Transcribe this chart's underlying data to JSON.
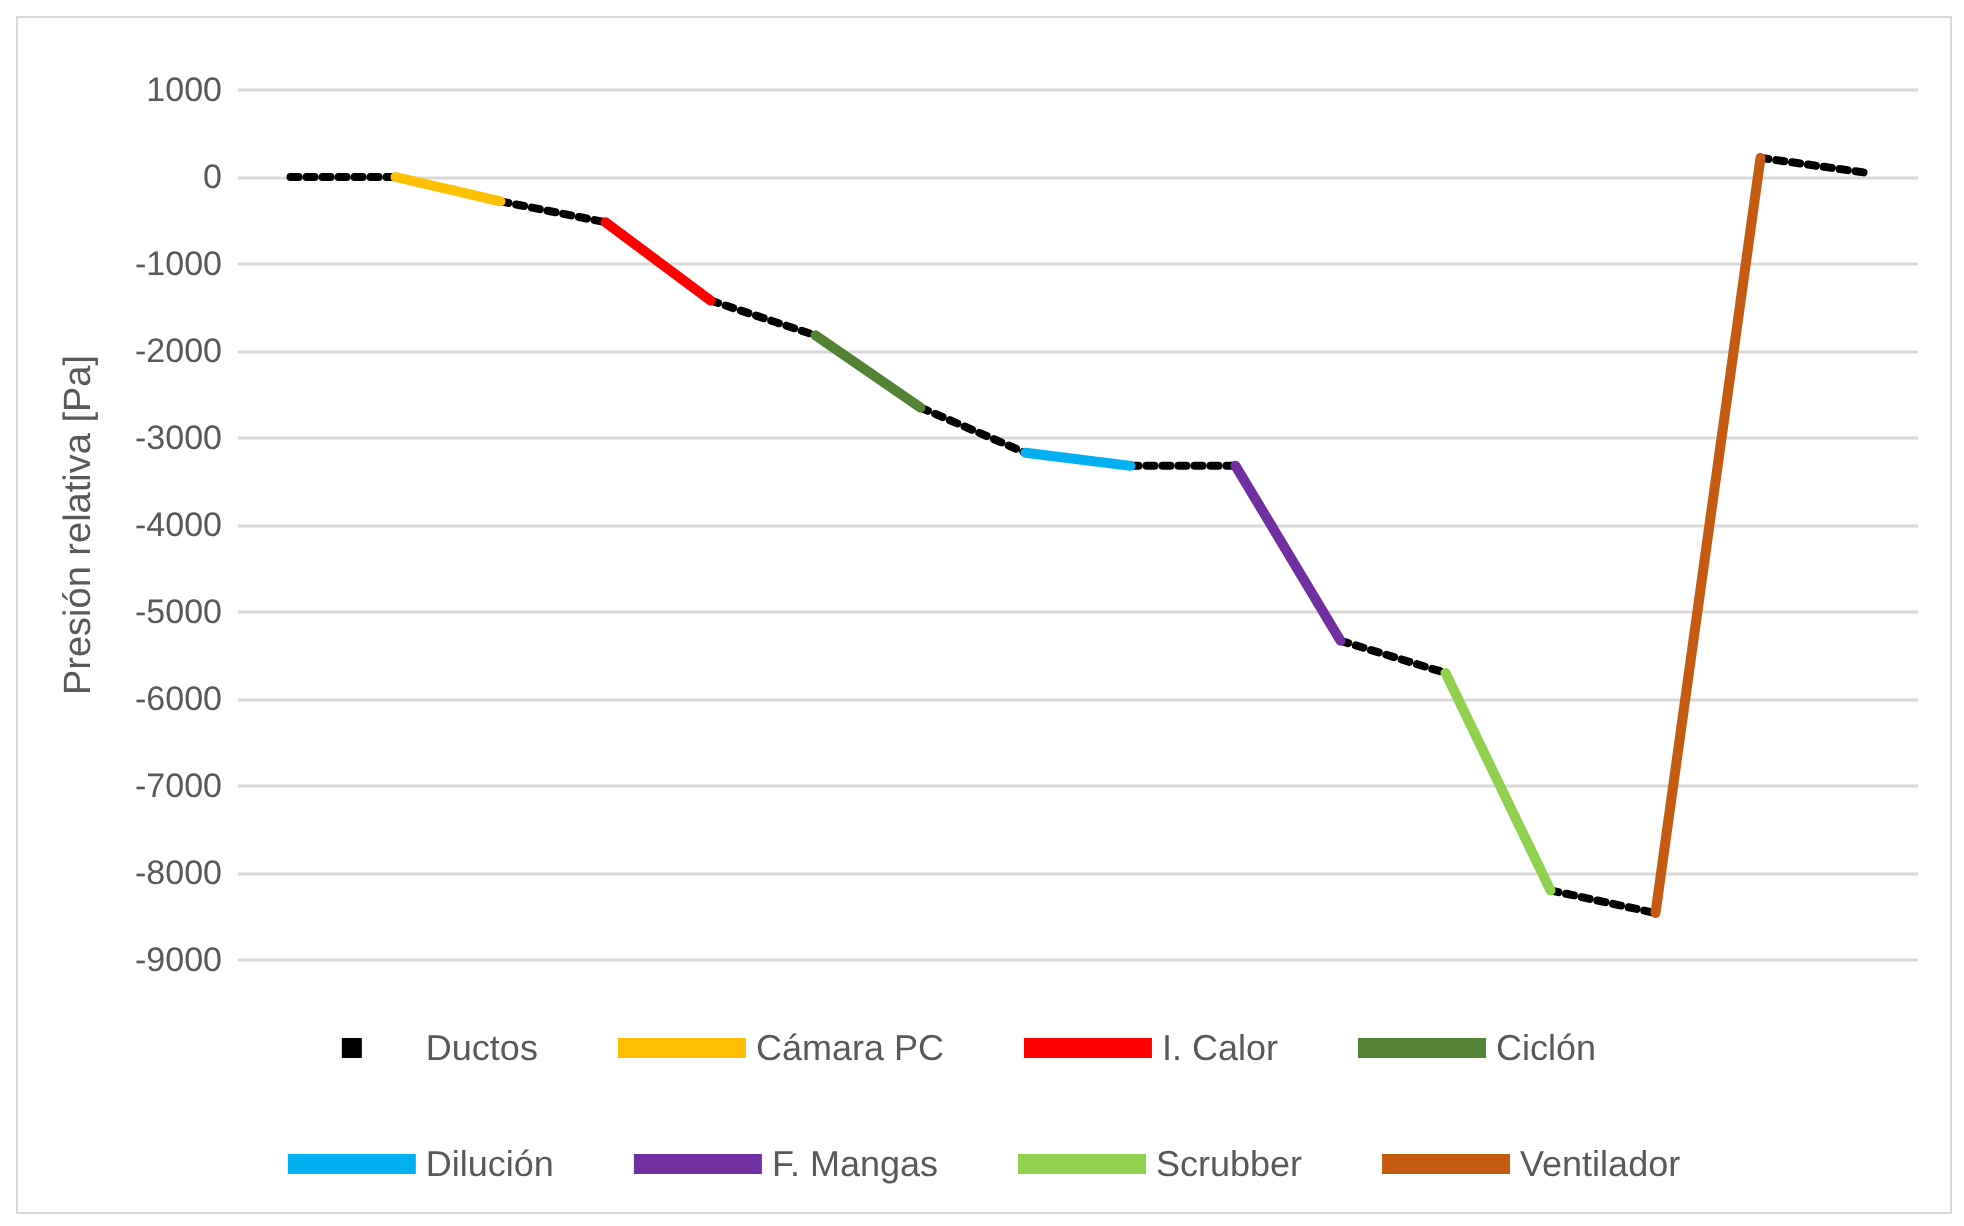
{
  "chart_data": {
    "type": "line",
    "ylabel": "Presión relativa [Pa]",
    "categories": [
      null,
      null,
      null,
      null,
      null,
      null,
      null,
      null,
      null,
      null,
      null,
      null,
      null,
      null,
      null,
      null
    ],
    "ylim": [
      -9000,
      1000
    ],
    "yticks": [
      -9000,
      -8000,
      -7000,
      -6000,
      -5000,
      -4000,
      -3000,
      -2000,
      -1000,
      0,
      1000
    ],
    "grid": "y",
    "legend": "bottom",
    "tick_labels": "y",
    "marker": "none",
    "series": [
      {
        "name": "Ductos",
        "color": "#000000",
        "line_style": "dotted",
        "values": [
          0,
          0,
          -280,
          -520,
          -1420,
          -1820,
          -2650,
          -3170,
          -3320,
          -3320,
          -5330,
          -5700,
          -8200,
          -8460,
          220,
          50
        ]
      },
      {
        "name": "Cámara PC",
        "color": "#ffc000",
        "values": [
          null,
          0,
          -280,
          null,
          null,
          null,
          null,
          null,
          null,
          null,
          null,
          null,
          null,
          null,
          null,
          null
        ]
      },
      {
        "name": "I. Calor",
        "color": "#ff0000",
        "values": [
          null,
          null,
          null,
          -520,
          -1420,
          null,
          null,
          null,
          null,
          null,
          null,
          null,
          null,
          null,
          null,
          null
        ]
      },
      {
        "name": "Ciclón",
        "color": "#548235",
        "values": [
          null,
          null,
          null,
          null,
          null,
          -1820,
          -2650,
          null,
          null,
          null,
          null,
          null,
          null,
          null,
          null,
          null
        ]
      },
      {
        "name": "Dilución",
        "color": "#00b0f0",
        "values": [
          null,
          null,
          null,
          null,
          null,
          null,
          null,
          -3170,
          -3320,
          null,
          null,
          null,
          null,
          null,
          null,
          null
        ]
      },
      {
        "name": "F. Mangas",
        "color": "#7030a0",
        "values": [
          null,
          null,
          null,
          null,
          null,
          null,
          null,
          null,
          null,
          -3320,
          -5330,
          null,
          null,
          null,
          null,
          null
        ]
      },
      {
        "name": "Scrubber",
        "color": "#92d050",
        "values": [
          null,
          null,
          null,
          null,
          null,
          null,
          null,
          null,
          null,
          null,
          null,
          -5700,
          -8200,
          null,
          null,
          null
        ]
      },
      {
        "name": "Ventilador",
        "color": "#c55a11",
        "values": [
          null,
          null,
          null,
          null,
          null,
          null,
          null,
          null,
          null,
          null,
          null,
          null,
          null,
          -8460,
          220,
          null
        ]
      }
    ]
  }
}
